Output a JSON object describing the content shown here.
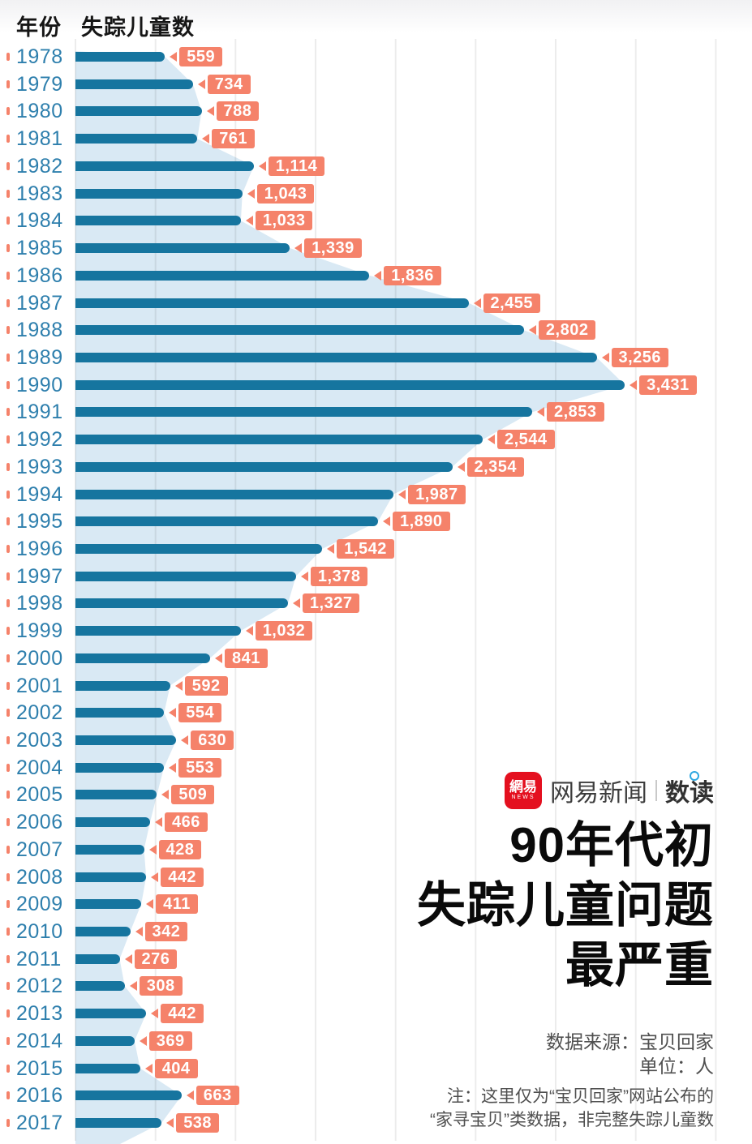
{
  "header": {
    "col_year": "年份",
    "col_count": "失踪儿童数"
  },
  "chart_data": {
    "type": "bar",
    "orientation": "horizontal",
    "title": "90年代初失踪儿童问题最严重",
    "xlabel": "失踪儿童数",
    "ylabel": "年份",
    "xlim": [
      0,
      4000
    ],
    "grid": true,
    "grid_step": 500,
    "categories": [
      "1978",
      "1979",
      "1980",
      "1981",
      "1982",
      "1983",
      "1984",
      "1985",
      "1986",
      "1987",
      "1988",
      "1989",
      "1990",
      "1991",
      "1992",
      "1993",
      "1994",
      "1995",
      "1996",
      "1997",
      "1998",
      "1999",
      "2000",
      "2001",
      "2002",
      "2003",
      "2004",
      "2005",
      "2006",
      "2007",
      "2008",
      "2009",
      "2010",
      "2011",
      "2012",
      "2013",
      "2014",
      "2015",
      "2016",
      "2017"
    ],
    "values": [
      559,
      734,
      788,
      761,
      1114,
      1043,
      1033,
      1339,
      1836,
      2455,
      2802,
      3256,
      3431,
      2853,
      2544,
      2354,
      1987,
      1890,
      1542,
      1378,
      1327,
      1032,
      841,
      592,
      554,
      630,
      553,
      509,
      466,
      428,
      442,
      411,
      342,
      276,
      308,
      442,
      369,
      404,
      663,
      538
    ],
    "value_labels": [
      "559",
      "734",
      "788",
      "761",
      "1,114",
      "1,043",
      "1,033",
      "1,339",
      "1,836",
      "2,455",
      "2,802",
      "3,256",
      "3,431",
      "2,853",
      "2,544",
      "2,354",
      "1,987",
      "1,890",
      "1,542",
      "1,378",
      "1,327",
      "1,032",
      "841",
      "592",
      "554",
      "630",
      "553",
      "509",
      "466",
      "428",
      "442",
      "411",
      "342",
      "276",
      "308",
      "442",
      "369",
      "404",
      "663",
      "538"
    ]
  },
  "branding": {
    "logo_cn": "網易",
    "logo_news": "NEWS",
    "brand_name": "网易新闻",
    "brand_sub": "数读"
  },
  "title": {
    "line1": "90年代初",
    "line2": "失踪儿童问题",
    "line3": "最严重"
  },
  "footer": {
    "source": "数据来源：宝贝回家",
    "unit": "单位：人",
    "note_line1": "注：这里仅为“宝贝回家”网站公布的",
    "note_line2": "“家寻宝贝”类数据，非完整失踪儿童数"
  },
  "colors": {
    "bar": "#16759f",
    "year_text": "#2e7fad",
    "accent": "#f5826a",
    "area": "#d9e9f4",
    "logo_red": "#e4101f",
    "dot_blue": "#2ea7e0"
  }
}
